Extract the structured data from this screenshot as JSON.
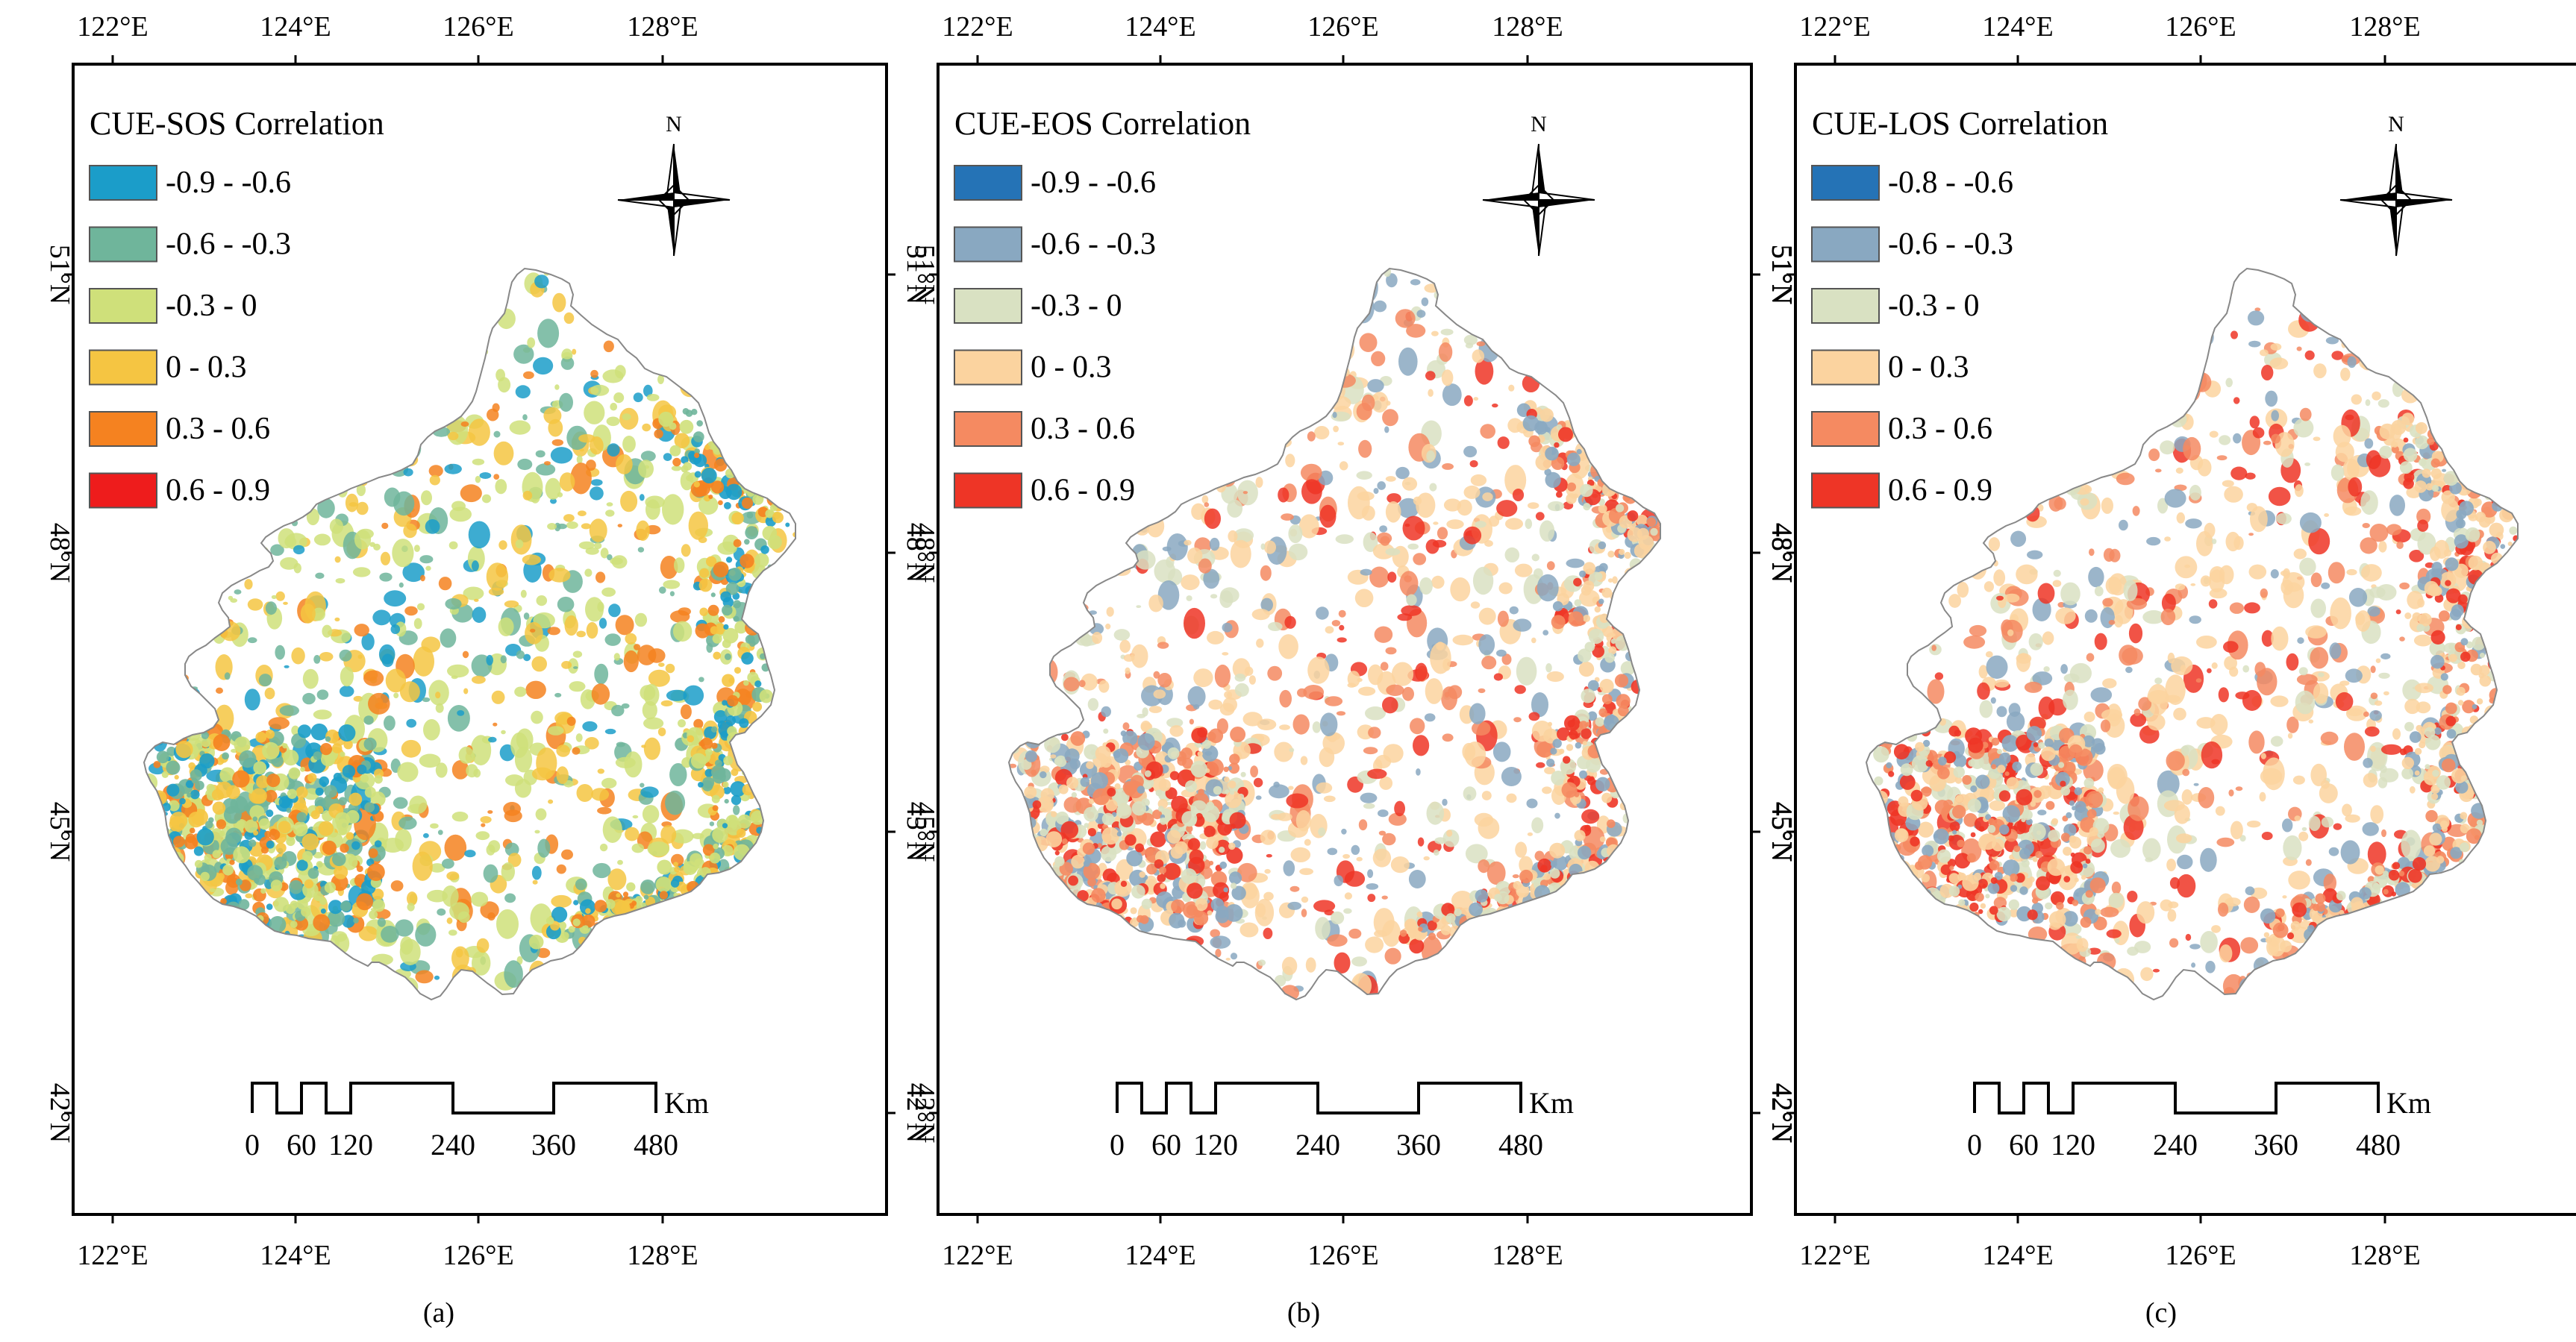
{
  "figure": {
    "panels": [
      {
        "id": "a",
        "caption": "(a)",
        "legend_title": "CUE-SOS Correlation",
        "legend": [
          {
            "label": "-0.9 - -0.6",
            "color": "#1b9dc9"
          },
          {
            "label": "-0.6 - -0.3",
            "color": "#6fb59b"
          },
          {
            "label": "-0.3 - 0",
            "color": "#cfe07a"
          },
          {
            "label": "0 - 0.3",
            "color": "#f5c542"
          },
          {
            "label": "0.3 - 0.6",
            "color": "#f58220"
          },
          {
            "label": "0.6 - 0.9",
            "color": "#ee1c1c"
          }
        ],
        "patch_colors": [
          "#cfe07a",
          "#f5c542",
          "#6fb59b",
          "#1b9dc9",
          "#f58220"
        ]
      },
      {
        "id": "b",
        "caption": "(b)",
        "legend_title": "CUE-EOS Correlation",
        "legend": [
          {
            "label": "-0.9 - -0.6",
            "color": "#2573b6"
          },
          {
            "label": "-0.6 - -0.3",
            "color": "#89a8c1"
          },
          {
            "label": "-0.3 - 0",
            "color": "#d9e1c2"
          },
          {
            "label": "0 - 0.3",
            "color": "#fbd39f"
          },
          {
            "label": "0.3 - 0.6",
            "color": "#f58a61"
          },
          {
            "label": "0.6 - 0.9",
            "color": "#ee3526"
          }
        ],
        "patch_colors": [
          "#fbd39f",
          "#f58a61",
          "#d9e1c2",
          "#89a8c1",
          "#ee3526"
        ]
      },
      {
        "id": "c",
        "caption": "(c)",
        "legend_title": "CUE-LOS Correlation",
        "legend": [
          {
            "label": "-0.8 - -0.6",
            "color": "#2573b6"
          },
          {
            "label": "-0.6 - -0.3",
            "color": "#89a8c1"
          },
          {
            "label": "-0.3 - 0",
            "color": "#d9e1c2"
          },
          {
            "label": "0 - 0.3",
            "color": "#fbd39f"
          },
          {
            "label": "0.3 - 0.6",
            "color": "#f58a61"
          },
          {
            "label": "0.6 - 0.9",
            "color": "#ee3526"
          }
        ],
        "patch_colors": [
          "#fbd39f",
          "#f58a61",
          "#ee3526",
          "#d9e1c2",
          "#89a8c1"
        ]
      }
    ],
    "lon_ticks": [
      "122°E",
      "124°E",
      "126°E",
      "128°E"
    ],
    "lat_ticks": [
      "51°N",
      "48°N",
      "45°N",
      "42°N"
    ],
    "north_label": "N",
    "scale_bar": {
      "unit": "Km",
      "ticks": [
        "0",
        "60",
        "120",
        "240",
        "360",
        "480"
      ]
    }
  }
}
